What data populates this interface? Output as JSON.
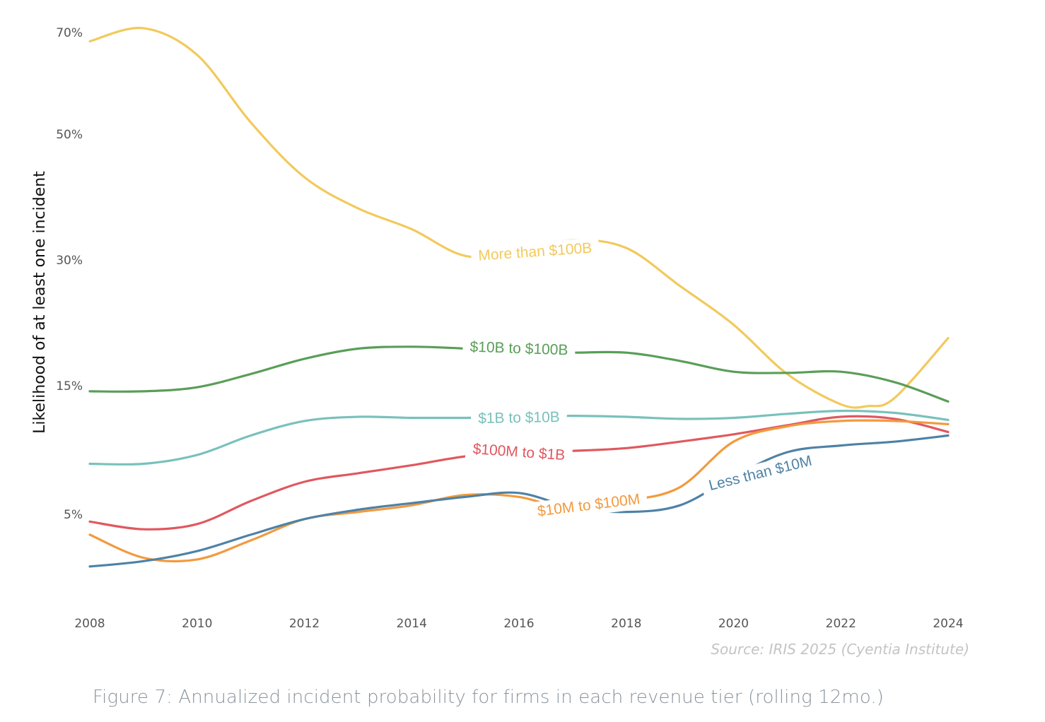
{
  "chart_data": {
    "type": "line",
    "title": "",
    "ylabel": "Likelihood of at least one incident",
    "xlabel": "",
    "y_scale": "log",
    "x_ticks": [
      2008,
      2010,
      2012,
      2014,
      2016,
      2018,
      2020,
      2022,
      2024
    ],
    "y_ticks": [
      {
        "value": 5,
        "label": "5%"
      },
      {
        "value": 15,
        "label": "15%"
      },
      {
        "value": 30,
        "label": "30%"
      },
      {
        "value": 50,
        "label": "50%"
      },
      {
        "value": 70,
        "label": "70%"
      }
    ],
    "xlim": [
      2008,
      2024
    ],
    "grid": false,
    "source": "Source: IRIS 2025 (Cyentia Institute)",
    "series": [
      {
        "name": "More than $100B",
        "color": "#f2c95c",
        "label_year": 2016.3,
        "label_value": 31,
        "label_angle": -4,
        "x": [
          2008,
          2009,
          2010,
          2011,
          2012,
          2013,
          2014,
          2015,
          2016,
          2017,
          2018,
          2019,
          2020,
          2021,
          2022,
          2022.5,
          2023,
          2024
        ],
        "values": [
          68,
          71,
          65,
          52,
          42,
          37,
          34,
          30.5,
          31,
          32.5,
          31.5,
          26,
          21,
          16,
          12.8,
          12.6,
          13.5,
          19.5
        ]
      },
      {
        "name": "$10B to $100B",
        "color": "#5a9e58",
        "label_year": 2016,
        "label_value": 18.4,
        "label_angle": 2,
        "x": [
          2008,
          2009,
          2010,
          2011,
          2012,
          2013,
          2014,
          2015,
          2016,
          2017,
          2018,
          2019,
          2020,
          2021,
          2022,
          2023,
          2024
        ],
        "values": [
          14.3,
          14.3,
          14.8,
          16,
          17.4,
          18.4,
          18.6,
          18.4,
          18,
          18,
          18,
          17.2,
          16.2,
          16.1,
          16.2,
          15.3,
          13.1
        ]
      },
      {
        "name": "$1B to $10B",
        "color": "#79c1bb",
        "label_year": 2016,
        "label_value": 11.4,
        "label_angle": -1,
        "x": [
          2008,
          2009,
          2010,
          2011,
          2012,
          2013,
          2014,
          2015,
          2016,
          2017,
          2018,
          2019,
          2020,
          2021,
          2022,
          2023,
          2024
        ],
        "values": [
          7.7,
          7.7,
          8.3,
          9.8,
          11.1,
          11.5,
          11.4,
          11.4,
          11.5,
          11.6,
          11.5,
          11.3,
          11.4,
          11.8,
          12.1,
          11.9,
          11.2
        ]
      },
      {
        "name": "$100M to $1B",
        "color": "#e0585f",
        "label_year": 2016,
        "label_value": 8.5,
        "label_angle": 4,
        "x": [
          2008,
          2009,
          2010,
          2011,
          2012,
          2013,
          2014,
          2015,
          2016,
          2017,
          2018,
          2019,
          2020,
          2021,
          2022,
          2023,
          2024
        ],
        "values": [
          4.7,
          4.4,
          4.6,
          5.6,
          6.6,
          7.1,
          7.6,
          8.2,
          8.5,
          8.6,
          8.8,
          9.3,
          9.9,
          10.7,
          11.5,
          11.3,
          10.1
        ]
      },
      {
        "name": "$10M to $100M",
        "color": "#f29a3e",
        "label_year": 2017.3,
        "label_value": 5.4,
        "label_angle": -7,
        "x": [
          2008,
          2009,
          2010,
          2011,
          2012,
          2013,
          2014,
          2015,
          2016,
          2017,
          2018,
          2019,
          2020,
          2021,
          2022,
          2023,
          2024
        ],
        "values": [
          4.2,
          3.45,
          3.4,
          4.0,
          4.8,
          5.1,
          5.4,
          5.9,
          5.8,
          5.2,
          5.6,
          6.3,
          9.3,
          10.6,
          11.1,
          11.1,
          10.8
        ]
      },
      {
        "name": "Less than $10M",
        "color": "#4e82a6",
        "label_year": 2020.5,
        "label_value": 7.1,
        "label_angle": -14,
        "x": [
          2008,
          2009,
          2010,
          2011,
          2012,
          2013,
          2014,
          2015,
          2016,
          2017,
          2018,
          2019,
          2020,
          2021,
          2022,
          2023,
          2024
        ],
        "values": [
          3.2,
          3.35,
          3.65,
          4.2,
          4.8,
          5.2,
          5.5,
          5.8,
          6.0,
          5.3,
          5.1,
          5.4,
          6.9,
          8.5,
          9.0,
          9.3,
          9.8
        ]
      }
    ]
  },
  "caption": "Figure 7: Annualized incident probability for firms in each revenue tier (rolling 12mo.)"
}
